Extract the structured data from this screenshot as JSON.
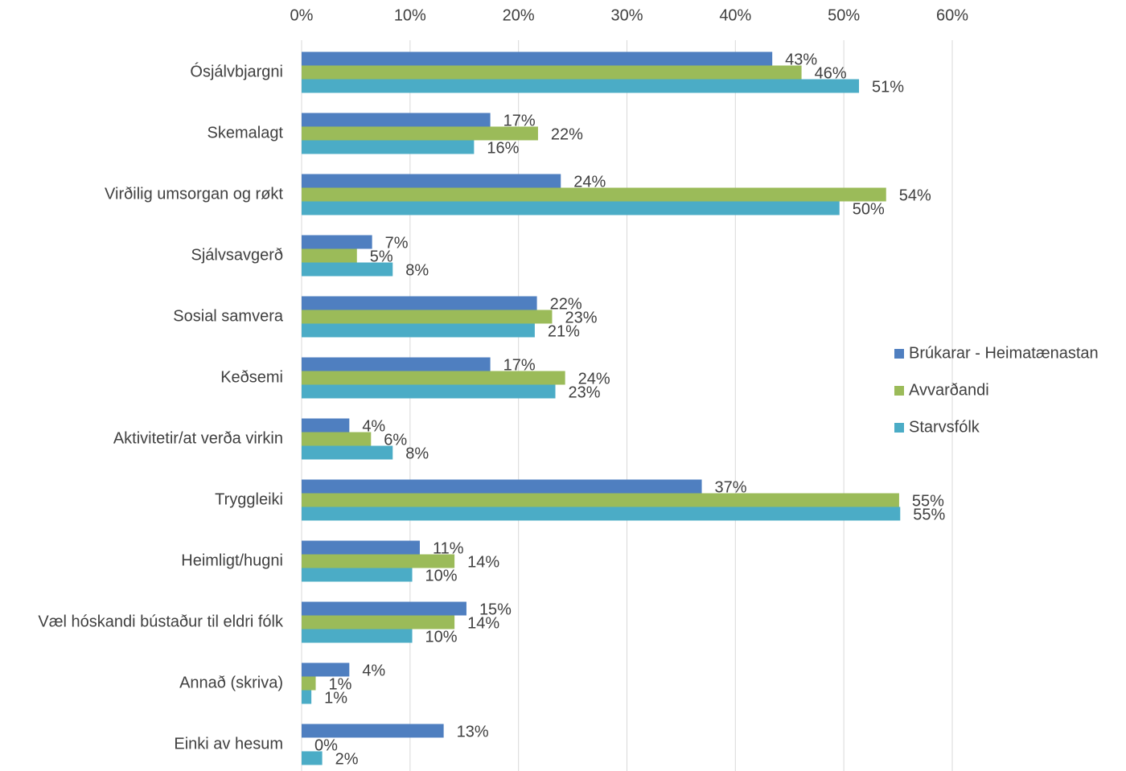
{
  "chart_data": {
    "type": "hbar",
    "categories": [
      "Ósjálvbjargni",
      "Skemalagt",
      "Virðilig umsorgan og røkt",
      "Sjálvsavgerð",
      "Sosial samvera",
      "Keðsemi",
      "Aktivitetir/at verða virkin",
      "Tryggleiki",
      "Heimligt/hugni",
      "Væl hóskandi bústaður til eldri fólk",
      "Annað (skriva)",
      "Einki av hesum"
    ],
    "series": [
      {
        "name": "Brúkarar - Heimatænastan",
        "color": "#4f7fc0",
        "values": [
          43.4,
          17.4,
          23.9,
          6.5,
          21.7,
          17.4,
          4.4,
          36.9,
          10.9,
          15.2,
          4.4,
          13.1
        ],
        "value_labels": [
          "43%",
          "17%",
          "24%",
          "7%",
          "22%",
          "17%",
          "4%",
          "37%",
          "11%",
          "15%",
          "4%",
          "13%"
        ]
      },
      {
        "name": "Avvarðandi",
        "color": "#9bbb59",
        "values": [
          46.1,
          21.8,
          53.9,
          5.1,
          23.1,
          24.3,
          6.4,
          55.1,
          14.1,
          14.1,
          1.3,
          0
        ],
        "value_labels": [
          "46%",
          "22%",
          "54%",
          "5%",
          "23%",
          "24%",
          "6%",
          "55%",
          "14%",
          "14%",
          "1%",
          "0%"
        ]
      },
      {
        "name": "Starvsfólk",
        "color": "#4bacc6",
        "values": [
          51.4,
          15.9,
          49.6,
          8.4,
          21.5,
          23.4,
          8.4,
          55.2,
          10.2,
          10.2,
          0.9,
          1.9
        ],
        "value_labels": [
          "51%",
          "16%",
          "50%",
          "8%",
          "21%",
          "23%",
          "8%",
          "55%",
          "10%",
          "10%",
          "1%",
          "2%"
        ]
      }
    ],
    "xlim": [
      0,
      60
    ],
    "xticks": [
      {
        "value": 0,
        "label": "0%"
      },
      {
        "value": 10,
        "label": "10%"
      },
      {
        "value": 20,
        "label": "20%"
      },
      {
        "value": 30,
        "label": "30%"
      },
      {
        "value": 40,
        "label": "40%"
      },
      {
        "value": 50,
        "label": "50%"
      },
      {
        "value": 60,
        "label": "60%"
      }
    ],
    "grid": true,
    "legend": "right"
  }
}
